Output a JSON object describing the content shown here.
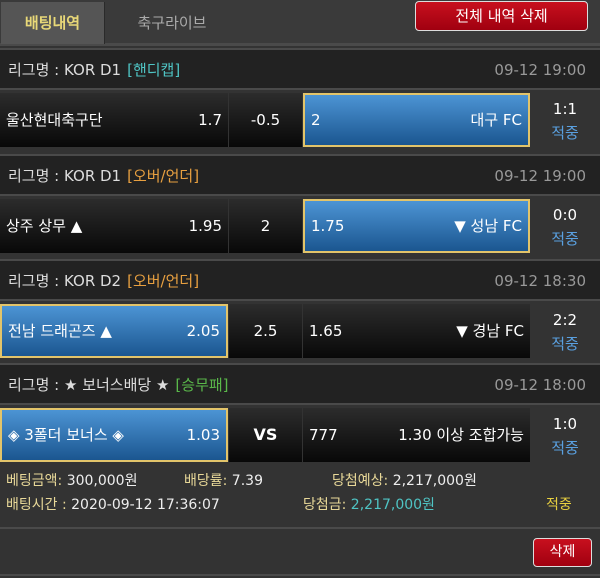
{
  "tabs": [
    "배팅내역",
    "축구라이브"
  ],
  "delete_all_label": "전체 내역 삭제",
  "delete_label": "삭제",
  "colors": {
    "handicap": "#4fc4c4",
    "overunder": "#e8a040",
    "winlose": "#5ab84a",
    "selected": "#2f74b4",
    "hit": "#5aa0e0",
    "final_hit": "#e8d040",
    "button": "#b8101c"
  },
  "groups": [
    {
      "league": "리그명 : KOR D1",
      "type": "[핸디캡]",
      "type_color": "#4fc4c4",
      "time": "09-12 19:00",
      "home": "울산현대축구단",
      "home_odds": "1.7",
      "mid": "-0.5",
      "away_odds": "2",
      "away": "대구 FC",
      "selected": "away",
      "score": "1:1",
      "status": "적중"
    },
    {
      "league": "리그명 : KOR D1",
      "type": "[오버/언더]",
      "type_color": "#e8a040",
      "time": "09-12 19:00",
      "home": "상주 상무 ▲",
      "home_odds": "1.95",
      "mid": "2",
      "away_odds": "1.75",
      "away": "▼ 성남 FC",
      "selected": "away",
      "score": "0:0",
      "status": "적중"
    },
    {
      "league": "리그명 : KOR D2",
      "type": "[오버/언더]",
      "type_color": "#e8a040",
      "time": "09-12 18:30",
      "home": "전남 드래곤즈 ▲",
      "home_odds": "2.05",
      "mid": "2.5",
      "away_odds": "1.65",
      "away": "▼ 경남 FC",
      "selected": "home",
      "score": "2:2",
      "status": "적중"
    },
    {
      "league": "리그명 : ★ 보너스배당 ★",
      "type": "[승무패]",
      "type_color": "#5ab84a",
      "time": "09-12 18:00",
      "home": "◈ 3폴더 보너스 ◈",
      "home_odds": "1.03",
      "mid": "VS",
      "away_odds": "777",
      "away": "1.30 이상 조합가능",
      "selected": "home",
      "score": "1:0",
      "status": "적중"
    }
  ],
  "summary": {
    "bet_amount_label": "베팅금액:",
    "bet_amount": " 300,000원",
    "odds_label": "배당률:",
    "odds": " 7.39",
    "expected_label": "당첨예상:",
    "expected": " 2,217,000원",
    "bet_time_label": "배팅시간 :",
    "bet_time": " 2020-09-12 17:36:07",
    "win_label": "당첨금:",
    "win": " 2,217,000원",
    "result": "적중"
  }
}
